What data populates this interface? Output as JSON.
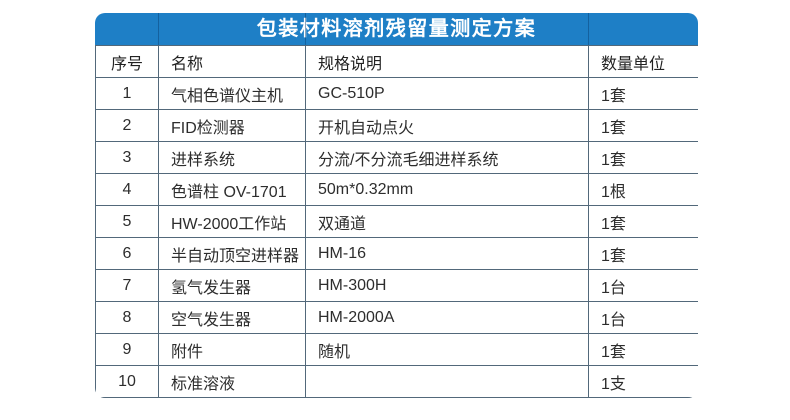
{
  "card": {
    "title": "包装材料溶剂残留量测定方案",
    "banner_color": "#1e7fc6",
    "banner_divider_color": "#0e5d9e",
    "border_color": "#52687a",
    "title_text_color": "#ffffff",
    "cell_background": "#ffffff",
    "body_text_color": "#2d2d2d"
  },
  "table": {
    "columns": [
      {
        "key": "index",
        "label": "序号"
      },
      {
        "key": "name",
        "label": "名称"
      },
      {
        "key": "spec",
        "label": "规格说明"
      },
      {
        "key": "qty",
        "label": "数量单位"
      }
    ],
    "rows": [
      {
        "index": "1",
        "name": "气相色谱仪主机",
        "spec": "GC-510P",
        "qty": "1套"
      },
      {
        "index": "2",
        "name": "FID检测器",
        "spec": "开机自动点火",
        "qty": "1套"
      },
      {
        "index": "3",
        "name": "进样系统",
        "spec": "分流/不分流毛细进样系统",
        "qty": "1套"
      },
      {
        "index": "4",
        "name": "色谱柱 OV-1701",
        "spec": "50m*0.32mm",
        "qty": "1根"
      },
      {
        "index": "5",
        "name": "HW-2000工作站",
        "spec": "双通道",
        "qty": "1套"
      },
      {
        "index": "6",
        "name": "半自动顶空进样器",
        "spec": "HM-16",
        "qty": "1套"
      },
      {
        "index": "7",
        "name": "氢气发生器",
        "spec": "HM-300H",
        "qty": "1台"
      },
      {
        "index": "8",
        "name": "空气发生器",
        "spec": "HM-2000A",
        "qty": "1台"
      },
      {
        "index": "9",
        "name": "附件",
        "spec": "随机",
        "qty": "1套"
      },
      {
        "index": "10",
        "name": "标准溶液",
        "spec": "",
        "qty": "1支"
      }
    ]
  }
}
